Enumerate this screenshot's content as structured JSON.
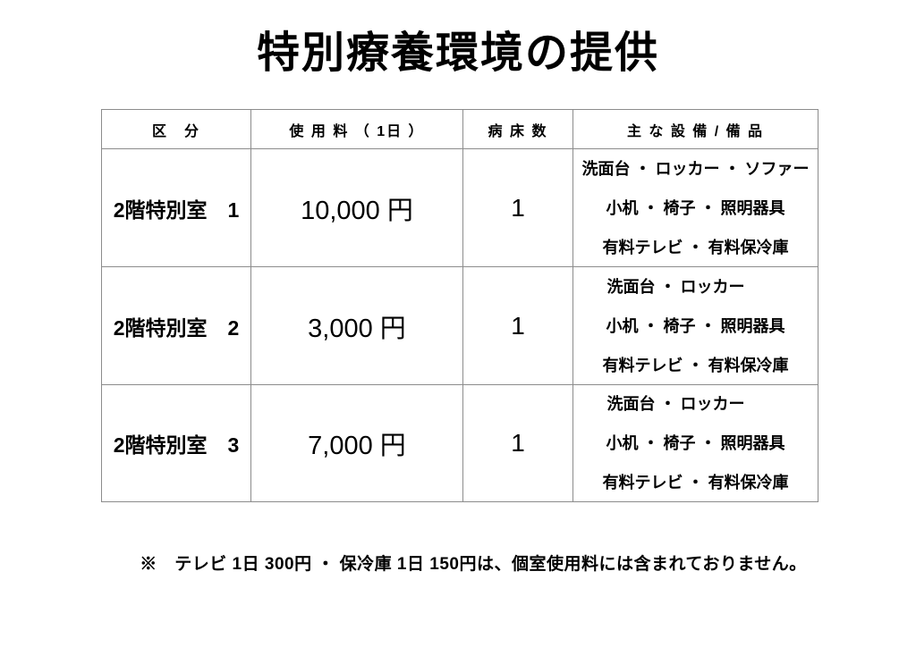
{
  "title": "特別療養環境の提供",
  "table": {
    "headers": [
      "区　分",
      "使 用 料 （ 1日 ）",
      "病 床 数",
      "主 な 設 備 / 備 品"
    ],
    "rows": [
      {
        "name": "2階特別室　1",
        "fee": "10,000 円",
        "beds": "1",
        "equipment": [
          "洗面台 ・ ロッカー ・ ソファー",
          "小机 ・ 椅子 ・ 照明器具",
          "有料テレビ ・ 有料保冷庫"
        ]
      },
      {
        "name": "2階特別室　2",
        "fee": "3,000 円",
        "beds": "1",
        "equipment": [
          "洗面台 ・ ロッカー",
          "小机 ・ 椅子 ・ 照明器具",
          "有料テレビ ・ 有料保冷庫"
        ]
      },
      {
        "name": "2階特別室　3",
        "fee": "7,000 円",
        "beds": "1",
        "equipment": [
          "洗面台 ・ ロッカー",
          "小机 ・ 椅子 ・ 照明器具",
          "有料テレビ ・ 有料保冷庫"
        ]
      }
    ]
  },
  "footnote": "※　テレビ 1日 300円 ・ 保冷庫 1日 150円は、個室使用料には含まれておりません。"
}
